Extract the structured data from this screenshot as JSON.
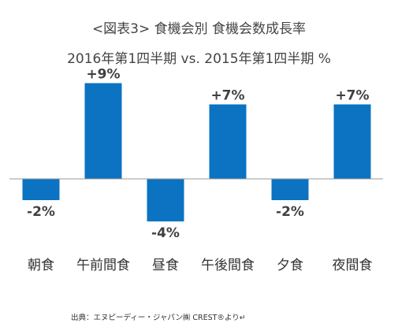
{
  "header": {
    "title": "<図表3> 食機会別 食機会数成長率",
    "subtitle": "2016年第1四半期 vs. 2015年第1四半期 %"
  },
  "footer": {
    "source": "出典：エヌピーディー・ジャパン㈱ CREST®より↵"
  },
  "colors": {
    "bar": "#0b73c1",
    "axis": "#9a9a9a",
    "label": "#404040",
    "category": "#333333"
  },
  "chart_data": {
    "type": "bar",
    "title": "<図表3> 食機会別 食機会数成長率",
    "subtitle": "2016年第1四半期 vs. 2015年第1四半期 %",
    "categories": [
      "朝食",
      "午前間食",
      "昼食",
      "午後間食",
      "夕食",
      "夜間食"
    ],
    "values": [
      -2,
      9,
      -4,
      7,
      -2,
      7
    ],
    "data_labels": [
      "-2%",
      "+9%",
      "-4%",
      "+7%",
      "-2%",
      "+7%"
    ],
    "xlabel": "",
    "ylabel": "",
    "ylim": [
      -4.8,
      10
    ],
    "grid": false,
    "legend": "none"
  }
}
